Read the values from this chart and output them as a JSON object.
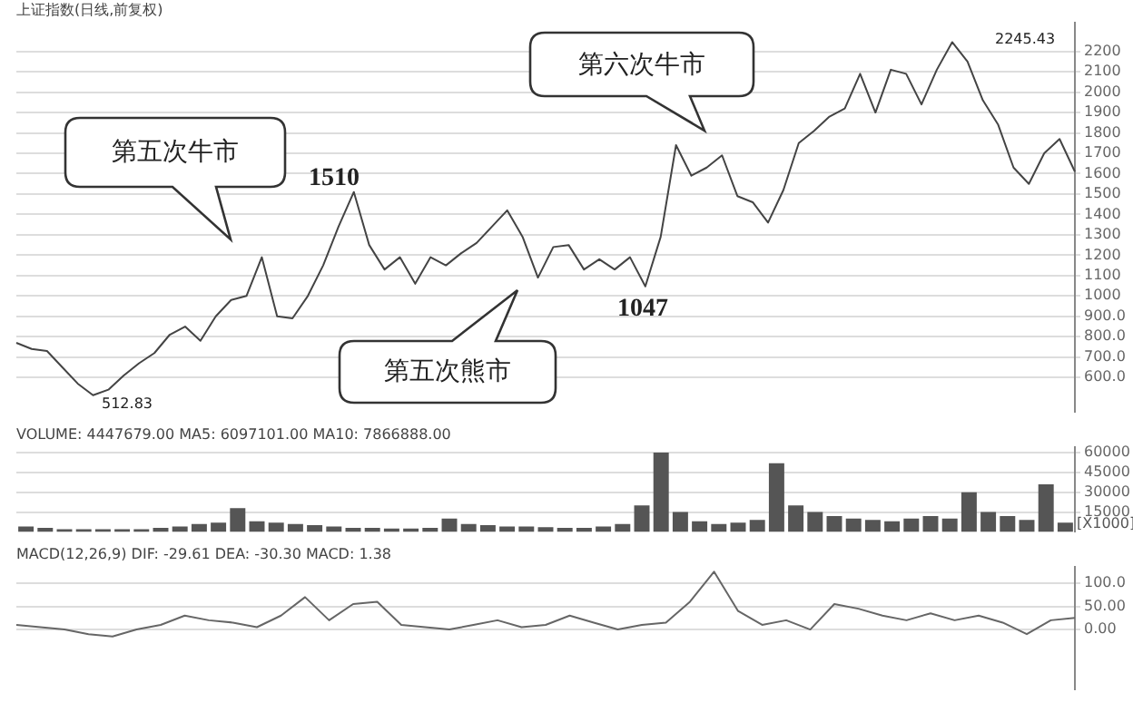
{
  "chart_data": [
    {
      "type": "line",
      "title": "上证指数(日线,前复权)",
      "categories": [
        null,
        null,
        null,
        null,
        null,
        null,
        null,
        null,
        null,
        null,
        null,
        null,
        null,
        null,
        null,
        null,
        null,
        null,
        null,
        null,
        null,
        null,
        null,
        null,
        null,
        null,
        null,
        null,
        null,
        null,
        null,
        null,
        null,
        null,
        null,
        null,
        null,
        null,
        null,
        null,
        null,
        null,
        null,
        null,
        null,
        null,
        null,
        null,
        null,
        null,
        null,
        null,
        null,
        null,
        null,
        null,
        null,
        null,
        null,
        null,
        null,
        null,
        null,
        null,
        null,
        null,
        null,
        null,
        null,
        null
      ],
      "series": [
        {
          "color": "#444444",
          "values": [
            770,
            740,
            730,
            650,
            570,
            512.83,
            540,
            610,
            670,
            720,
            810,
            850,
            780,
            900,
            980,
            1000,
            1190,
            900,
            890,
            1000,
            1150,
            1340,
            1510,
            1250,
            1130,
            1190,
            1060,
            1190,
            1150,
            1210,
            1260,
            1340,
            1420,
            1290,
            1090,
            1240,
            1250,
            1130,
            1180,
            1130,
            1190,
            1047,
            1290,
            1740,
            1590,
            1630,
            1690,
            1490,
            1460,
            1360,
            1520,
            1750,
            1810,
            1880,
            1920,
            2090,
            1900,
            2110,
            2090,
            1940,
            2110,
            2245.43,
            2150,
            1960,
            1840,
            1630,
            1550,
            1700,
            1770,
            1610
          ]
        }
      ],
      "ylim": [
        430,
        2340
      ],
      "yticks": [
        {
          "value": 600,
          "label": "600.0"
        },
        {
          "value": 700,
          "label": "700.0"
        },
        {
          "value": 800,
          "label": "800.0"
        },
        {
          "value": 900,
          "label": "900.0"
        },
        1000,
        1100,
        1200,
        1300,
        1400,
        1500,
        1600,
        1700,
        1800,
        1900,
        2000,
        2100,
        2200
      ],
      "grid": "y",
      "marker": "none",
      "line_style": "solid",
      "tick_labels": "y",
      "annotations": [
        "第五次牛市",
        "第六次牛市",
        "第五次熊市",
        "1510",
        "1047",
        "512.83",
        "2245.43"
      ]
    },
    {
      "type": "bar",
      "title": "VOLUME: 4447679.00 MA5: 6097101.00 MA10: 7866888.00",
      "categories": [
        null,
        null,
        null,
        null,
        null,
        null,
        null,
        null,
        null,
        null,
        null,
        null,
        null,
        null,
        null,
        null,
        null,
        null,
        null,
        null,
        null,
        null,
        null,
        null,
        null,
        null,
        null,
        null,
        null,
        null,
        null,
        null,
        null,
        null,
        null,
        null,
        null,
        null,
        null,
        null,
        null,
        null,
        null,
        null,
        null,
        null,
        null,
        null,
        null,
        null,
        null,
        null,
        null,
        null,
        null
      ],
      "series": [
        {
          "color": "#555555",
          "values": [
            4000,
            3000,
            2000,
            2000,
            2000,
            2000,
            2000,
            3000,
            4000,
            6000,
            7000,
            18000,
            8000,
            7000,
            6000,
            5000,
            4000,
            3000,
            3000,
            2500,
            2500,
            3000,
            10000,
            6000,
            5000,
            4000,
            4000,
            3500,
            3000,
            3000,
            4000,
            6000,
            20000,
            60000,
            15000,
            8000,
            6000,
            7000,
            9000,
            52000,
            20000,
            15000,
            12000,
            10000,
            9000,
            8000,
            10000,
            12000,
            10000,
            30000,
            15000,
            12000,
            9000,
            36000,
            7000
          ]
        }
      ],
      "ylim": [
        0,
        64000
      ],
      "yticks": [
        15000,
        30000,
        45000,
        60000
      ],
      "grid": "y",
      "tick_labels": "y",
      "annotations": [
        "[X1000]"
      ]
    },
    {
      "type": "line",
      "title": "MACD(12,26,9) DIF: -29.61 DEA: -30.30 MACD: 1.38",
      "categories": [
        null,
        null,
        null,
        null,
        null,
        null,
        null,
        null,
        null,
        null,
        null,
        null,
        null,
        null,
        null,
        null,
        null,
        null,
        null,
        null,
        null,
        null,
        null,
        null,
        null,
        null,
        null,
        null,
        null,
        null,
        null,
        null,
        null,
        null,
        null,
        null,
        null,
        null,
        null,
        null,
        null,
        null,
        null,
        null,
        null
      ],
      "series": [
        {
          "color": "#666666",
          "values": [
            10,
            5,
            0,
            -10,
            -15,
            0,
            10,
            30,
            20,
            15,
            5,
            30,
            70,
            20,
            55,
            60,
            10,
            5,
            0,
            10,
            20,
            5,
            10,
            30,
            15,
            0,
            10,
            15,
            60,
            125,
            40,
            10,
            20,
            0,
            55,
            45,
            30,
            20,
            35,
            20,
            30,
            15,
            -10,
            20,
            25
          ]
        }
      ],
      "ylim": [
        -130,
        135
      ],
      "yticks": [
        {
          "value": 0,
          "label": "0.00"
        },
        {
          "value": 50,
          "label": "50.00"
        },
        {
          "value": 100,
          "label": "100.0"
        }
      ],
      "grid": "y",
      "marker": "none",
      "line_style": "solid",
      "tick_labels": "y"
    }
  ]
}
